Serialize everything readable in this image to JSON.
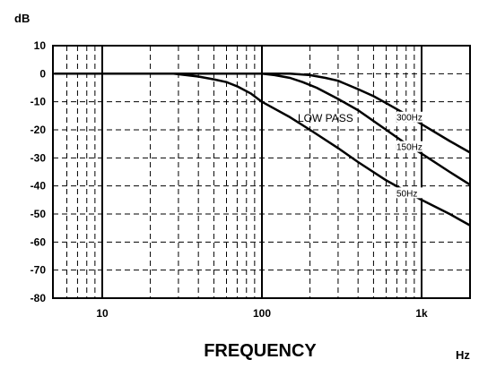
{
  "chart_data": {
    "type": "line",
    "title": "",
    "xlabel": "FREQUENCY",
    "x_unit": "Hz",
    "y_unit": "dB",
    "x_scale": "log",
    "xlim": [
      5,
      2000
    ],
    "ylim": [
      -80,
      10
    ],
    "yticks": [
      10,
      0,
      -10,
      -20,
      -30,
      -40,
      -50,
      -60,
      -70,
      -80
    ],
    "ytick_labels": [
      "10",
      "0",
      "-10",
      "-20",
      "-30",
      "-40",
      "-50",
      "-60",
      "-70",
      "-80"
    ],
    "xticks": [
      10,
      100,
      1000
    ],
    "xtick_labels": [
      "10",
      "100",
      "1k"
    ],
    "grid": true,
    "annotation": "LOW PASS",
    "series": [
      {
        "name": "50Hz",
        "x": [
          5,
          20,
          28,
          40,
          50,
          60,
          70,
          85,
          100,
          150,
          200,
          300,
          400,
          600,
          800,
          1000,
          1500,
          2000
        ],
        "y": [
          0,
          0,
          0,
          -1,
          -2,
          -3,
          -4.5,
          -7,
          -10,
          -15.5,
          -20,
          -26.5,
          -31.5,
          -38,
          -42,
          -45,
          -50,
          -54
        ]
      },
      {
        "name": "150Hz",
        "x": [
          5,
          90,
          100,
          120,
          150,
          180,
          220,
          300,
          400,
          600,
          800,
          1000,
          1500,
          2000
        ],
        "y": [
          0,
          0,
          0,
          -0.5,
          -1.5,
          -3,
          -5,
          -9,
          -13,
          -20,
          -25,
          -28.5,
          -35,
          -39.5
        ]
      },
      {
        "name": "300Hz",
        "x": [
          5,
          100,
          150,
          200,
          250,
          300,
          400,
          500,
          600,
          800,
          1000,
          1500,
          2000
        ],
        "y": [
          0,
          0,
          0,
          -0.5,
          -1.5,
          -2.5,
          -5.5,
          -8,
          -10.5,
          -14.5,
          -18,
          -24,
          -28
        ]
      }
    ]
  }
}
